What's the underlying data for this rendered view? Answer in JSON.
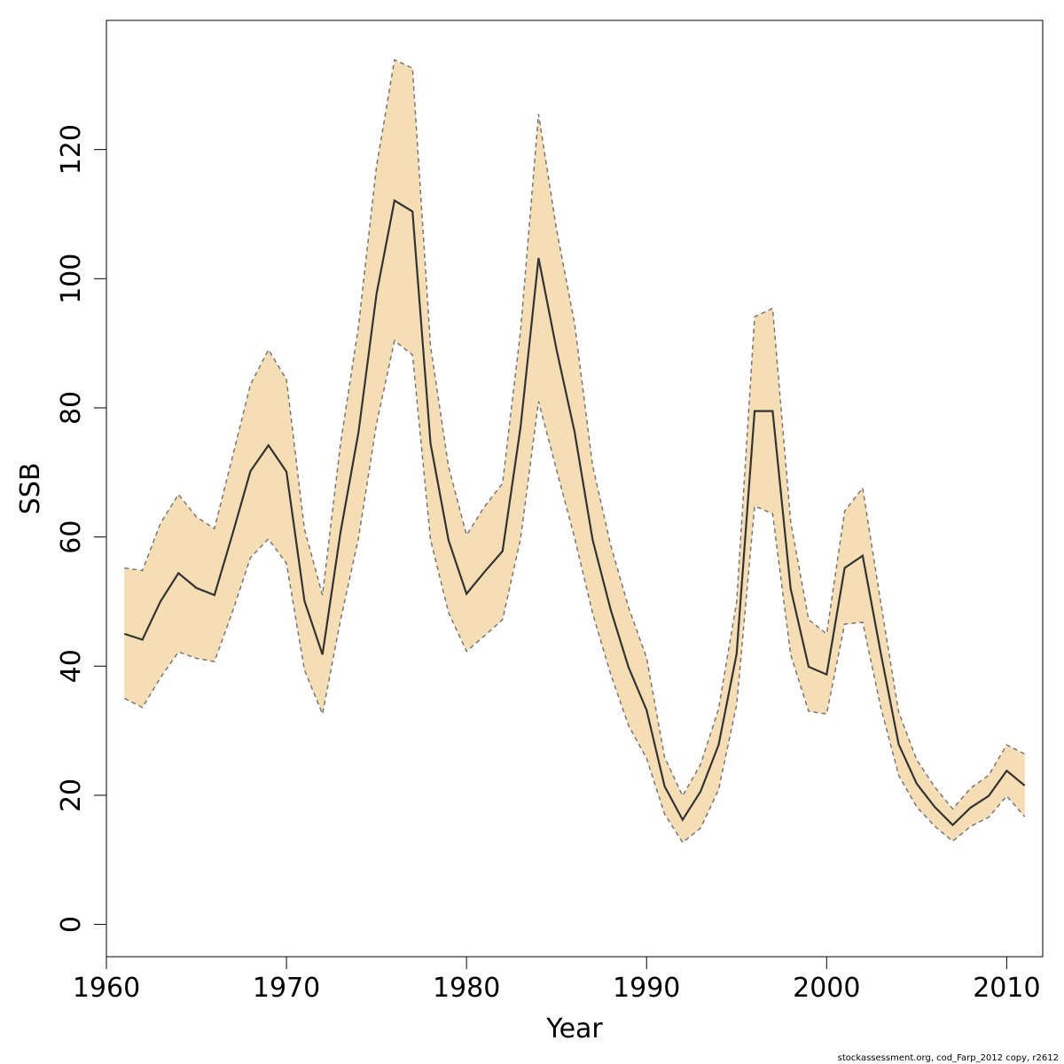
{
  "footer": "stockassessment.org, cod_Farp_2012 copy, r2612",
  "chart_data": {
    "type": "line",
    "title": "",
    "xlabel": "Year",
    "ylabel": "SSB",
    "xlim": [
      1960,
      2012
    ],
    "ylim": [
      -5,
      140
    ],
    "x_ticks": [
      1960,
      1970,
      1980,
      1990,
      2000,
      2010
    ],
    "y_ticks": [
      0,
      20,
      40,
      60,
      80,
      100,
      120
    ],
    "grid": false,
    "colors": {
      "band": "#F5DEB3",
      "line": "#333333",
      "bound": "#777777"
    },
    "x": [
      1961,
      1962,
      1963,
      1964,
      1965,
      1966,
      1967,
      1968,
      1969,
      1970,
      1971,
      1972,
      1973,
      1974,
      1975,
      1976,
      1977,
      1978,
      1979,
      1980,
      1981,
      1982,
      1983,
      1984,
      1985,
      1986,
      1987,
      1988,
      1989,
      1990,
      1991,
      1992,
      1993,
      1994,
      1995,
      1996,
      1997,
      1998,
      1999,
      2000,
      2001,
      2002,
      2003,
      2004,
      2005,
      2006,
      2007,
      2008,
      2009,
      2010,
      2011
    ],
    "series": [
      {
        "role": "estimate",
        "values": [
          45.0,
          44.1,
          50.0,
          54.4,
          52.1,
          51.0,
          60.4,
          70.2,
          74.2,
          70.1,
          50.1,
          41.8,
          60.7,
          76.2,
          97.6,
          112.1,
          110.4,
          74.5,
          59.5,
          51.2,
          54.6,
          57.8,
          77.0,
          103.2,
          89.0,
          76.3,
          59.6,
          48.8,
          39.8,
          33.2,
          21.4,
          16.2,
          20.6,
          27.8,
          41.9,
          79.5,
          79.5,
          52.0,
          39.9,
          38.7,
          55.2,
          57.1,
          42.1,
          27.9,
          21.8,
          18.2,
          15.4,
          18.1,
          19.9,
          23.8,
          21.5
        ]
      },
      {
        "role": "upper",
        "values": [
          55.2,
          54.8,
          62.1,
          66.6,
          63.1,
          61.3,
          72.4,
          83.6,
          89.0,
          84.4,
          61.2,
          51.0,
          74.4,
          92.6,
          117.4,
          133.9,
          132.6,
          89.6,
          70.9,
          60.3,
          64.7,
          68.3,
          91.9,
          125.5,
          107.6,
          93.1,
          71.1,
          58.8,
          49.1,
          41.3,
          25.9,
          19.9,
          24.8,
          33.4,
          49.9,
          94.1,
          95.4,
          62.4,
          47.2,
          45.0,
          64.0,
          67.6,
          49.9,
          32.9,
          25.5,
          21.3,
          17.9,
          21.1,
          23.1,
          27.8,
          26.4
        ]
      },
      {
        "role": "lower",
        "values": [
          35.0,
          33.6,
          38.2,
          42.2,
          41.2,
          40.7,
          48.4,
          56.8,
          59.7,
          55.9,
          39.4,
          32.6,
          47.1,
          59.8,
          77.5,
          90.4,
          88.2,
          59.6,
          48.3,
          42.3,
          44.7,
          47.2,
          59.7,
          81.0,
          70.4,
          59.9,
          48.2,
          38.8,
          30.8,
          25.7,
          17.1,
          12.7,
          14.9,
          20.9,
          34.0,
          64.8,
          63.6,
          41.8,
          33.0,
          32.6,
          46.5,
          46.8,
          33.7,
          23.1,
          18.2,
          15.2,
          12.9,
          15.2,
          16.6,
          19.9,
          16.7
        ]
      }
    ]
  }
}
